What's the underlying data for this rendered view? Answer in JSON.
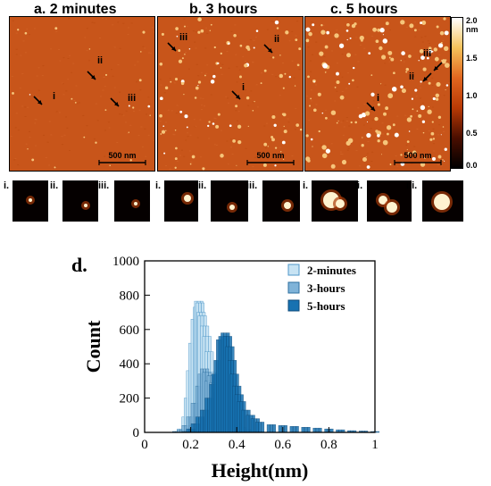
{
  "panels": [
    {
      "title": "a. 2 minutes",
      "scale_label": "500 nm",
      "markers": [
        {
          "label": "i"
        },
        {
          "label": "ii"
        },
        {
          "label": "iii"
        }
      ]
    },
    {
      "title": "b. 3 hours",
      "scale_label": "500 nm",
      "markers": [
        {
          "label": "iii"
        },
        {
          "label": "ii"
        },
        {
          "label": "i"
        }
      ]
    },
    {
      "title": "c. 5 hours",
      "scale_label": "500 nm",
      "markers": [
        {
          "label": "iii"
        },
        {
          "label": "ii"
        },
        {
          "label": "i"
        }
      ]
    }
  ],
  "colorbar": {
    "tick_labels": [
      "2.0 nm",
      "1.5",
      "1.0",
      "0.5",
      "0.0"
    ],
    "colors": [
      "#ffffff",
      "#f5c25a",
      "#e0661f",
      "#b83a05",
      "#4a0e00",
      "#000000"
    ]
  },
  "thumbnails": [
    {
      "label": "i."
    },
    {
      "label": "ii."
    },
    {
      "label": "iii."
    },
    {
      "label": "i."
    },
    {
      "label": "ii."
    },
    {
      "label": "iii."
    },
    {
      "label": "i."
    },
    {
      "label": "ii."
    },
    {
      "label": "iii."
    }
  ],
  "chart_data": {
    "type": "bar",
    "panel_label": "d.",
    "xlabel": "Height(nm)",
    "ylabel": "Count",
    "xlim": [
      0,
      1
    ],
    "ylim": [
      0,
      1000
    ],
    "xticks": [
      "0",
      "0.2",
      "0.4",
      "0.6",
      "0.8",
      "1"
    ],
    "yticks": [
      "0",
      "200",
      "400",
      "600",
      "800",
      "1000"
    ],
    "legend_position": "top-right",
    "grid": false,
    "series": [
      {
        "name": "2-minutes",
        "color": "#c7e3f3",
        "edge": "#4f97c8",
        "x": [
          0.14,
          0.16,
          0.18,
          0.19,
          0.2,
          0.21,
          0.22,
          0.23,
          0.235,
          0.24,
          0.245,
          0.25,
          0.26,
          0.27,
          0.28,
          0.29,
          0.3,
          0.31,
          0.32,
          0.34,
          0.36
        ],
        "values": [
          5,
          20,
          90,
          200,
          360,
          520,
          660,
          730,
          765,
          755,
          700,
          680,
          620,
          560,
          470,
          350,
          240,
          140,
          70,
          20,
          5
        ]
      },
      {
        "name": "3-hours",
        "color": "#7fb3d8",
        "edge": "#2d6f9f",
        "x": [
          0.14,
          0.16,
          0.18,
          0.2,
          0.22,
          0.24,
          0.25,
          0.26,
          0.27,
          0.28,
          0.29,
          0.3,
          0.31,
          0.32,
          0.33,
          0.34,
          0.35,
          0.36,
          0.38,
          0.4,
          0.42,
          0.45,
          0.5
        ],
        "values": [
          5,
          15,
          40,
          90,
          170,
          270,
          340,
          370,
          350,
          300,
          330,
          290,
          250,
          230,
          210,
          180,
          150,
          120,
          80,
          50,
          30,
          15,
          5
        ]
      },
      {
        "name": "5-hours",
        "color": "#1772b1",
        "edge": "#0c4a7a",
        "x": [
          0.18,
          0.2,
          0.22,
          0.24,
          0.26,
          0.28,
          0.3,
          0.31,
          0.32,
          0.33,
          0.34,
          0.35,
          0.36,
          0.37,
          0.38,
          0.39,
          0.4,
          0.41,
          0.42,
          0.44,
          0.46,
          0.48,
          0.5,
          0.55,
          0.6,
          0.65,
          0.7,
          0.75,
          0.8,
          0.85,
          0.9,
          0.95,
          1.0
        ],
        "values": [
          5,
          20,
          50,
          90,
          130,
          200,
          280,
          340,
          420,
          540,
          560,
          580,
          560,
          500,
          420,
          340,
          270,
          220,
          180,
          130,
          100,
          80,
          60,
          45,
          40,
          35,
          30,
          25,
          20,
          15,
          10,
          8,
          5
        ]
      }
    ]
  }
}
